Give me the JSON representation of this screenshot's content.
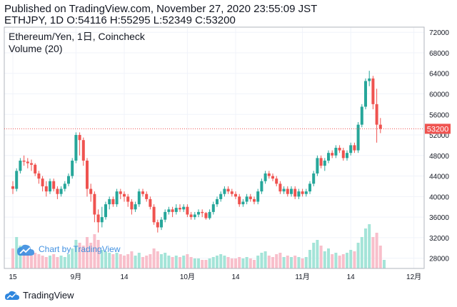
{
  "header": {
    "line1": "Published on TradingView.com, November 27, 2020 23:55:09 JST",
    "line2": "ETHJPY, 1D O:54116 H:55295 L:52349 C:53200"
  },
  "legend": {
    "symbol": "Ethereum/Yen, 1日, Coincheck",
    "volume": "Volume (20)"
  },
  "watermark": "Chart by TradingView",
  "footer": {
    "brand": "TradingView"
  },
  "colors": {
    "up": "#26a69a",
    "down": "#ef5350",
    "up_vol": "#a4e4d8",
    "down_vol": "#f8bfcb",
    "last_price": "#ef5350"
  },
  "chart_data": {
    "type": "candlestick",
    "symbol": "ETHJPY",
    "interval": "1D",
    "exchange": "Coincheck",
    "ylim": [
      26000,
      73000
    ],
    "y_ticks": [
      28000,
      32000,
      36000,
      40000,
      44000,
      48000,
      52000,
      56000,
      60000,
      64000,
      68000,
      72000
    ],
    "x_ticks": [
      {
        "label": "15",
        "day": 0
      },
      {
        "label": "9月",
        "day": 17
      },
      {
        "label": "14",
        "day": 30
      },
      {
        "label": "10月",
        "day": 47
      },
      {
        "label": "14",
        "day": 60
      },
      {
        "label": "11月",
        "day": 78
      },
      {
        "label": "14",
        "day": 91
      },
      {
        "label": "12月",
        "day": 108
      }
    ],
    "last_price": 53200,
    "last_price_label": "53200",
    "candles": [
      [
        42000,
        41500,
        43000,
        40500
      ],
      [
        41500,
        45000,
        45500,
        41000
      ],
      [
        45000,
        47000,
        47500,
        44500
      ],
      [
        47000,
        46800,
        48000,
        46000
      ],
      [
        46800,
        46500,
        47500,
        45500
      ],
      [
        46500,
        46200,
        47200,
        45000
      ],
      [
        46200,
        44500,
        46500,
        44000
      ],
      [
        44500,
        43500,
        45000,
        42500
      ],
      [
        43500,
        42000,
        44000,
        41000
      ],
      [
        42000,
        41000,
        43000,
        40000
      ],
      [
        41000,
        43000,
        43500,
        40500
      ],
      [
        43000,
        41500,
        43500,
        41000
      ],
      [
        41500,
        40500,
        42000,
        39500
      ],
      [
        40500,
        41500,
        42000,
        40000
      ],
      [
        41500,
        42500,
        43000,
        41000
      ],
      [
        42500,
        44000,
        44500,
        42000
      ],
      [
        44000,
        47000,
        47500,
        43500
      ],
      [
        47000,
        52000,
        52500,
        46500
      ],
      [
        52000,
        51000,
        52500,
        48000
      ],
      [
        51000,
        47000,
        51500,
        46000
      ],
      [
        47000,
        41500,
        47500,
        40000
      ],
      [
        41500,
        40500,
        42500,
        39000
      ],
      [
        40500,
        36500,
        41000,
        35000
      ],
      [
        36500,
        35000,
        37500,
        33000
      ],
      [
        35000,
        36000,
        38000,
        34000
      ],
      [
        36000,
        38500,
        39000,
        35500
      ],
      [
        38500,
        39500,
        40000,
        37500
      ],
      [
        39500,
        38500,
        40000,
        38000
      ],
      [
        38500,
        41000,
        41500,
        38000
      ],
      [
        41000,
        40500,
        41500,
        39500
      ],
      [
        40500,
        40000,
        41000,
        39000
      ],
      [
        40000,
        39000,
        40500,
        38000
      ],
      [
        39000,
        37500,
        39500,
        36500
      ],
      [
        37500,
        38500,
        39000,
        37000
      ],
      [
        38500,
        41000,
        41500,
        38000
      ],
      [
        41000,
        40500,
        41500,
        40000
      ],
      [
        40500,
        39500,
        41000,
        39000
      ],
      [
        39500,
        38000,
        40000,
        37500
      ],
      [
        38000,
        35000,
        38500,
        34500
      ],
      [
        35000,
        34000,
        35500,
        33000
      ],
      [
        34000,
        35500,
        36000,
        33500
      ],
      [
        35500,
        37000,
        37500,
        35000
      ],
      [
        37000,
        37500,
        38000,
        36500
      ],
      [
        37500,
        37000,
        38000,
        36000
      ],
      [
        37000,
        37800,
        38500,
        36500
      ],
      [
        37800,
        37500,
        38500,
        37000
      ],
      [
        37500,
        38000,
        38500,
        37000
      ],
      [
        38000,
        36500,
        38500,
        36000
      ],
      [
        36500,
        36000,
        37000,
        35500
      ],
      [
        36000,
        36500,
        37000,
        35500
      ],
      [
        36500,
        37000,
        37500,
        36000
      ],
      [
        37000,
        36800,
        37500,
        36000
      ],
      [
        36800,
        35800,
        37000,
        35500
      ],
      [
        35800,
        37000,
        37500,
        35500
      ],
      [
        37000,
        38500,
        39000,
        36500
      ],
      [
        38500,
        39500,
        40000,
        38000
      ],
      [
        39500,
        40500,
        41000,
        39000
      ],
      [
        40500,
        41500,
        42000,
        40000
      ],
      [
        41500,
        41000,
        42000,
        40500
      ],
      [
        41000,
        40500,
        41500,
        40000
      ],
      [
        40500,
        40000,
        41000,
        39500
      ],
      [
        40000,
        38500,
        40500,
        38000
      ],
      [
        38500,
        39000,
        39500,
        38000
      ],
      [
        39000,
        40000,
        40500,
        38500
      ],
      [
        40000,
        39500,
        40500,
        39000
      ],
      [
        39500,
        39000,
        40000,
        38500
      ],
      [
        39000,
        41000,
        41500,
        38500
      ],
      [
        41000,
        43000,
        43500,
        40500
      ],
      [
        43000,
        44500,
        45000,
        42500
      ],
      [
        44500,
        44000,
        45000,
        43500
      ],
      [
        44000,
        43500,
        44500,
        43000
      ],
      [
        43500,
        42500,
        44000,
        42000
      ],
      [
        42500,
        41000,
        43000,
        40500
      ],
      [
        41000,
        41500,
        42000,
        40500
      ],
      [
        41500,
        40500,
        42000,
        40000
      ],
      [
        40500,
        41500,
        42000,
        40000
      ],
      [
        41500,
        40000,
        42000,
        39500
      ],
      [
        40000,
        41000,
        41500,
        39500
      ],
      [
        41000,
        40500,
        41500,
        40000
      ],
      [
        40500,
        41000,
        41500,
        40000
      ],
      [
        41000,
        42500,
        43000,
        40500
      ],
      [
        42500,
        44500,
        45000,
        42000
      ],
      [
        44500,
        47500,
        48000,
        44000
      ],
      [
        47500,
        46000,
        48000,
        45500
      ],
      [
        46000,
        47000,
        47500,
        45000
      ],
      [
        47000,
        48500,
        49000,
        46500
      ],
      [
        48500,
        48000,
        49000,
        47500
      ],
      [
        48000,
        49500,
        50000,
        47500
      ],
      [
        49500,
        49000,
        50000,
        48500
      ],
      [
        49000,
        47500,
        49500,
        47000
      ],
      [
        47500,
        48500,
        49000,
        47000
      ],
      [
        48500,
        50000,
        50500,
        48000
      ],
      [
        50000,
        49000,
        50500,
        48500
      ],
      [
        49000,
        54000,
        54500,
        48500
      ],
      [
        54000,
        57500,
        58000,
        53500
      ],
      [
        57500,
        62500,
        63000,
        57000
      ],
      [
        62500,
        63000,
        64500,
        61500
      ],
      [
        63000,
        58000,
        63500,
        57000
      ],
      [
        58000,
        54000,
        61000,
        50500
      ],
      [
        54000,
        53200,
        55300,
        52350
      ]
    ],
    "volume_ylim": [
      0,
      60
    ],
    "volumes": [
      14,
      22,
      16,
      12,
      10,
      9,
      11,
      10,
      9,
      8,
      9,
      10,
      8,
      9,
      8,
      10,
      14,
      20,
      18,
      16,
      22,
      18,
      24,
      20,
      13,
      12,
      11,
      10,
      11,
      10,
      9,
      10,
      12,
      9,
      11,
      8,
      9,
      10,
      14,
      12,
      10,
      11,
      9,
      8,
      9,
      8,
      9,
      10,
      8,
      7,
      7,
      6,
      6,
      7,
      8,
      9,
      10,
      9,
      8,
      7,
      7,
      8,
      7,
      8,
      7,
      6,
      9,
      11,
      12,
      9,
      8,
      10,
      11,
      8,
      9,
      8,
      9,
      8,
      7,
      8,
      13,
      18,
      20,
      16,
      12,
      14,
      10,
      11,
      9,
      10,
      11,
      13,
      12,
      18,
      22,
      28,
      31,
      22,
      25,
      16,
      6
    ]
  }
}
